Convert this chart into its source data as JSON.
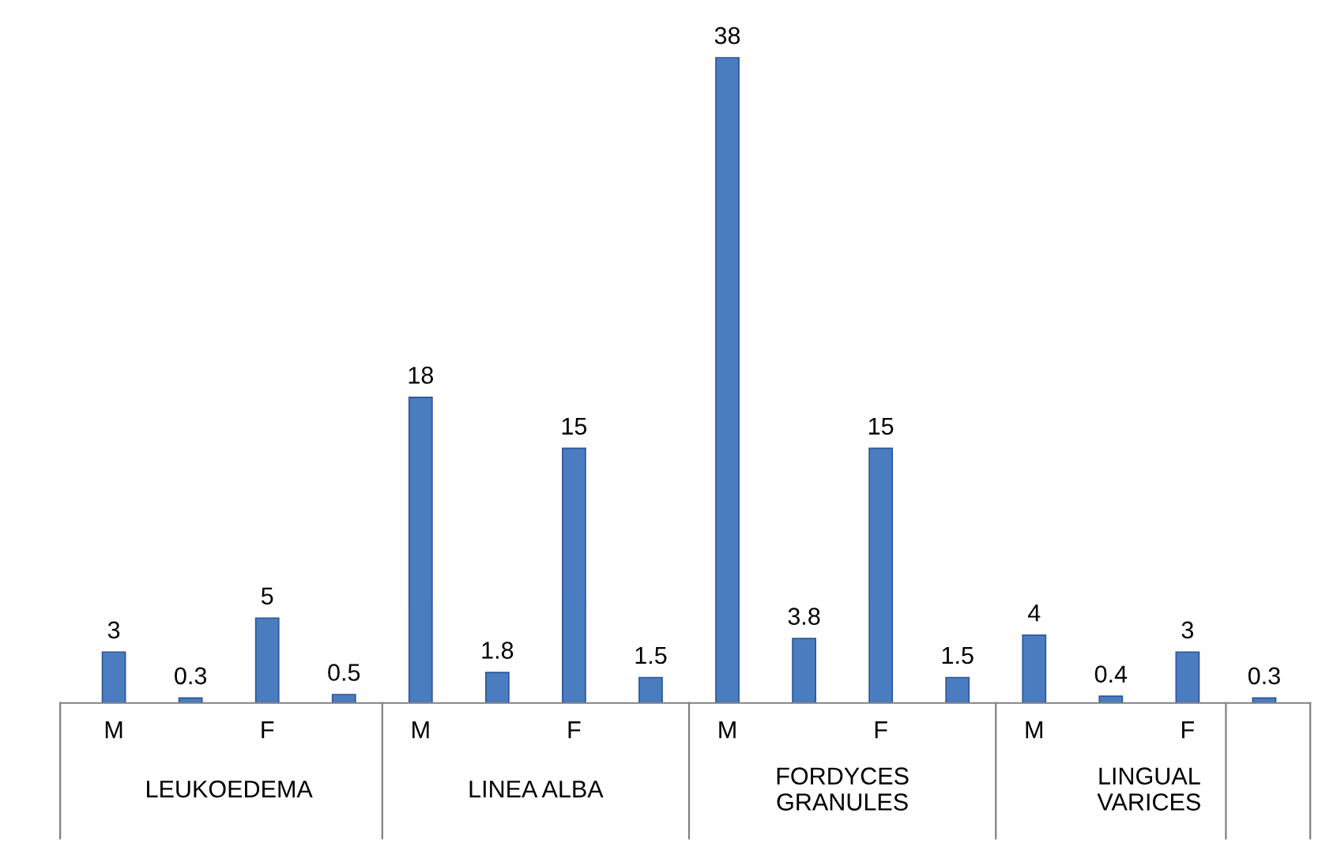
{
  "chart_data": {
    "type": "bar",
    "categories": [
      "M",
      null,
      "F",
      null,
      "M",
      null,
      "F",
      null,
      "M",
      null,
      "F",
      null,
      "M",
      null,
      "F",
      null
    ],
    "values": [
      3,
      0.3,
      5,
      0.5,
      18,
      1.8,
      15,
      1.5,
      38,
      3.8,
      15,
      1.5,
      4,
      0.4,
      3,
      0.3
    ],
    "color": "#4a7cc0",
    "data_labels": true,
    "annotations": [
      "LEUKOEDEMA",
      "LINEA ALBA",
      "FORDYCES\nGRANULES",
      "LINGUAL\nVARICES"
    ]
  }
}
